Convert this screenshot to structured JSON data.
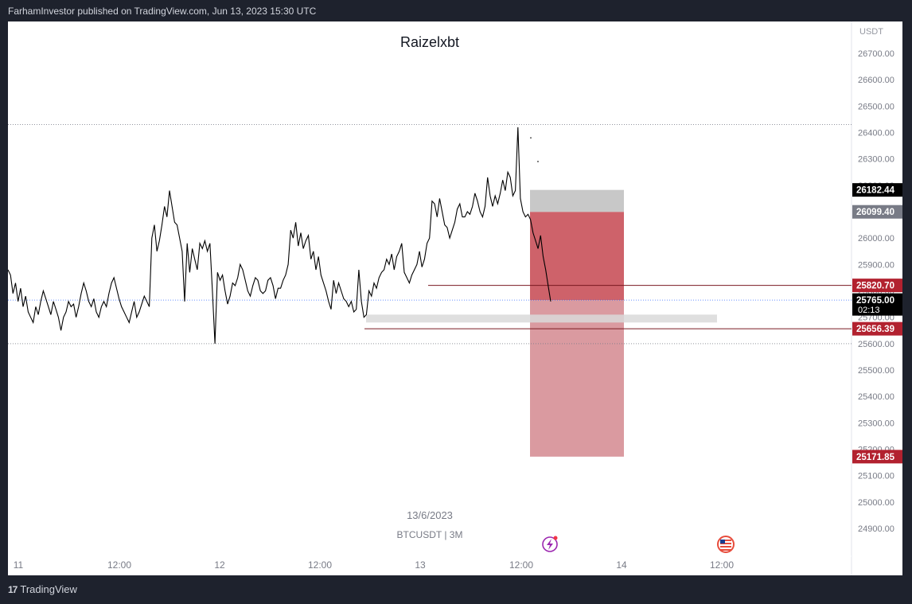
{
  "header": {
    "published_text": "FarhamInvestor published on TradingView.com, Jun 13, 2023 15:30 UTC"
  },
  "footer": {
    "brand": "TradingView",
    "logo_glyph": "17"
  },
  "icons": [
    "lightning-icon",
    "us-flag-icon"
  ],
  "colors": {
    "background": "#1e222d",
    "panel": "#ffffff",
    "price_line": "#000000",
    "loss_zone": "#c9515a",
    "loss_zone_light": "#da9aa0",
    "entry_label": "#000000",
    "marker_label": "#b2212f"
  },
  "chart_data": {
    "type": "line",
    "title": "Raizelxbt",
    "symbol": "BTCUSDT | 3M",
    "watermark_date": "13/6/2023",
    "currency": "USDT",
    "ylim": [
      24850,
      26800
    ],
    "y_ticks": [
      "26700.00",
      "26600.00",
      "26500.00",
      "26400.00",
      "26300.00",
      "26200.00",
      "26100.00",
      "26000.00",
      "25900.00",
      "25800.00",
      "25700.00",
      "25600.00",
      "25500.00",
      "25400.00",
      "25300.00",
      "25200.00",
      "25100.00",
      "25000.00",
      "24900.00"
    ],
    "x_ticks": [
      "11",
      "12:00",
      "12",
      "12:00",
      "13",
      "12:00",
      "14",
      "12:00"
    ],
    "price_labels": [
      {
        "value": "26182.44",
        "style": "dark"
      },
      {
        "value": "26099.40",
        "style": "gray"
      },
      {
        "value": "25820.70",
        "style": "red"
      },
      {
        "value": "25765.00",
        "sub": "02:13",
        "style": "dark"
      },
      {
        "value": "25656.39",
        "style": "red"
      },
      {
        "value": "25171.85",
        "style": "red"
      }
    ],
    "series": [
      {
        "values": [
          25880,
          25860,
          25790,
          25830,
          25760,
          25810,
          25740,
          25780,
          25720,
          25700,
          25680,
          25740,
          25710,
          25760,
          25800,
          25770,
          25740,
          25710,
          25760,
          25730,
          25700,
          25650,
          25700,
          25720,
          25760,
          25740,
          25750,
          25700,
          25740,
          25790,
          25830,
          25800,
          25760,
          25740,
          25770,
          25720,
          25700,
          25740,
          25760,
          25740,
          25790,
          25830,
          25850,
          25810,
          25770,
          25740,
          25720,
          25700,
          25680,
          25720,
          25760,
          25700,
          25720,
          25750,
          25780,
          25760,
          25740,
          26000,
          26050,
          25950,
          25990,
          26050,
          26120,
          26080,
          26180,
          26120,
          26060,
          26050,
          26000,
          25950,
          25760,
          25980,
          25870,
          25960,
          25920,
          25880,
          25980,
          25960,
          25990,
          25950,
          25980,
          25800,
          25600,
          25870,
          25840,
          25860,
          25800,
          25750,
          25780,
          25830,
          25820,
          25850,
          25900,
          25880,
          25840,
          25800,
          25780,
          25820,
          25850,
          25840,
          25800,
          25790,
          25800,
          25840,
          25850,
          25820,
          25770,
          25810,
          25810,
          25840,
          25860,
          25900,
          26030,
          26000,
          26060,
          25970,
          26020,
          25960,
          25990,
          26010,
          25920,
          25950,
          25880,
          25930,
          25860,
          25830,
          25800,
          25760,
          25730,
          25840,
          25790,
          25830,
          25800,
          25770,
          25760,
          25740,
          25760,
          25720,
          25730,
          25880,
          25760,
          25700,
          25710,
          25800,
          25780,
          25830,
          25810,
          25850,
          25870,
          25880,
          25920,
          25900,
          25940,
          25880,
          25930,
          25950,
          25980,
          25870,
          25850,
          25830,
          25860,
          25880,
          25900,
          25950,
          25890,
          25920,
          25980,
          26000,
          26140,
          26130,
          26080,
          26150,
          26100,
          26050,
          26040,
          26000,
          26030,
          26060,
          26110,
          26130,
          26080,
          26080,
          26100,
          26090,
          26120,
          26170,
          26140,
          26100,
          26080,
          26120,
          26230,
          26160,
          26120,
          26160,
          26130,
          26170,
          26220,
          26180,
          26250,
          26230,
          26160,
          26180,
          26420,
          26150,
          26100,
          26080,
          26090,
          26070,
          26020,
          25990,
          25960,
          26010,
          25930,
          25880,
          25820,
          25760
        ]
      }
    ],
    "annotations": [
      {
        "type": "loss_zone_dark",
        "from": 25765.0,
        "to": 26099.4
      },
      {
        "type": "loss_zone_light",
        "from": 25171.85,
        "to": 25765.0
      },
      {
        "type": "gray_zone",
        "from": 26099.4,
        "to": 26182.44
      },
      {
        "type": "support_band",
        "from": 25680,
        "to": 25710
      },
      {
        "type": "hline",
        "value": 25820.7
      },
      {
        "type": "hline",
        "value": 25656.39
      },
      {
        "type": "dotted_hline",
        "value": 26430
      },
      {
        "type": "dotted_hline",
        "value": 25765.0
      },
      {
        "type": "dotted_hline",
        "value": 25600
      }
    ]
  }
}
